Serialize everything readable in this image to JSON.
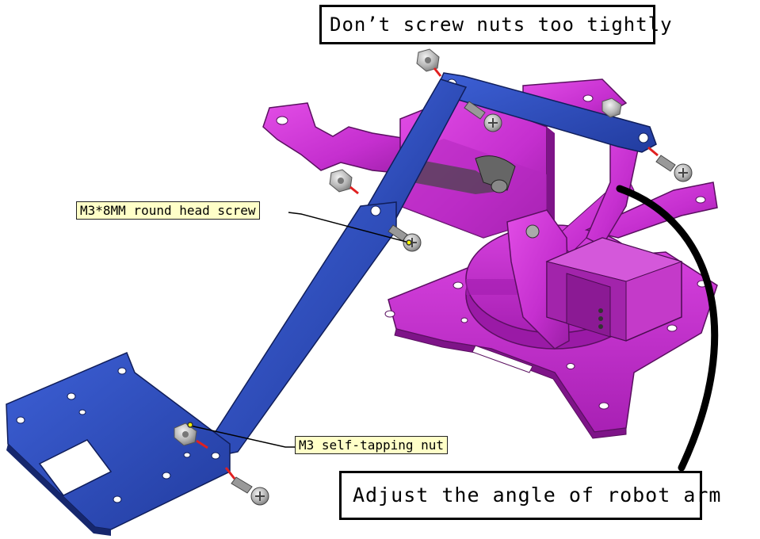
{
  "callouts": {
    "nuts_warning": "Don’t screw nuts too tightly",
    "screw_label": "M3*8MM round head screw",
    "nut_label": "M3 self-tapping nut",
    "adjust_angle": "Adjust the angle of robot arm"
  },
  "colors": {
    "magenta_part": "#c92fd3",
    "magenta_dark": "#8e1a98",
    "blue_part": "#2f4fc0",
    "blue_dark": "#1a2d80",
    "servo": "#b423b8",
    "hardware": "#b8b8b8",
    "guide_line": "#e02020",
    "callout_bg": "#ffffc8"
  },
  "icons": {
    "screw": "round-head-screw-icon",
    "nut": "hex-nut-icon"
  }
}
